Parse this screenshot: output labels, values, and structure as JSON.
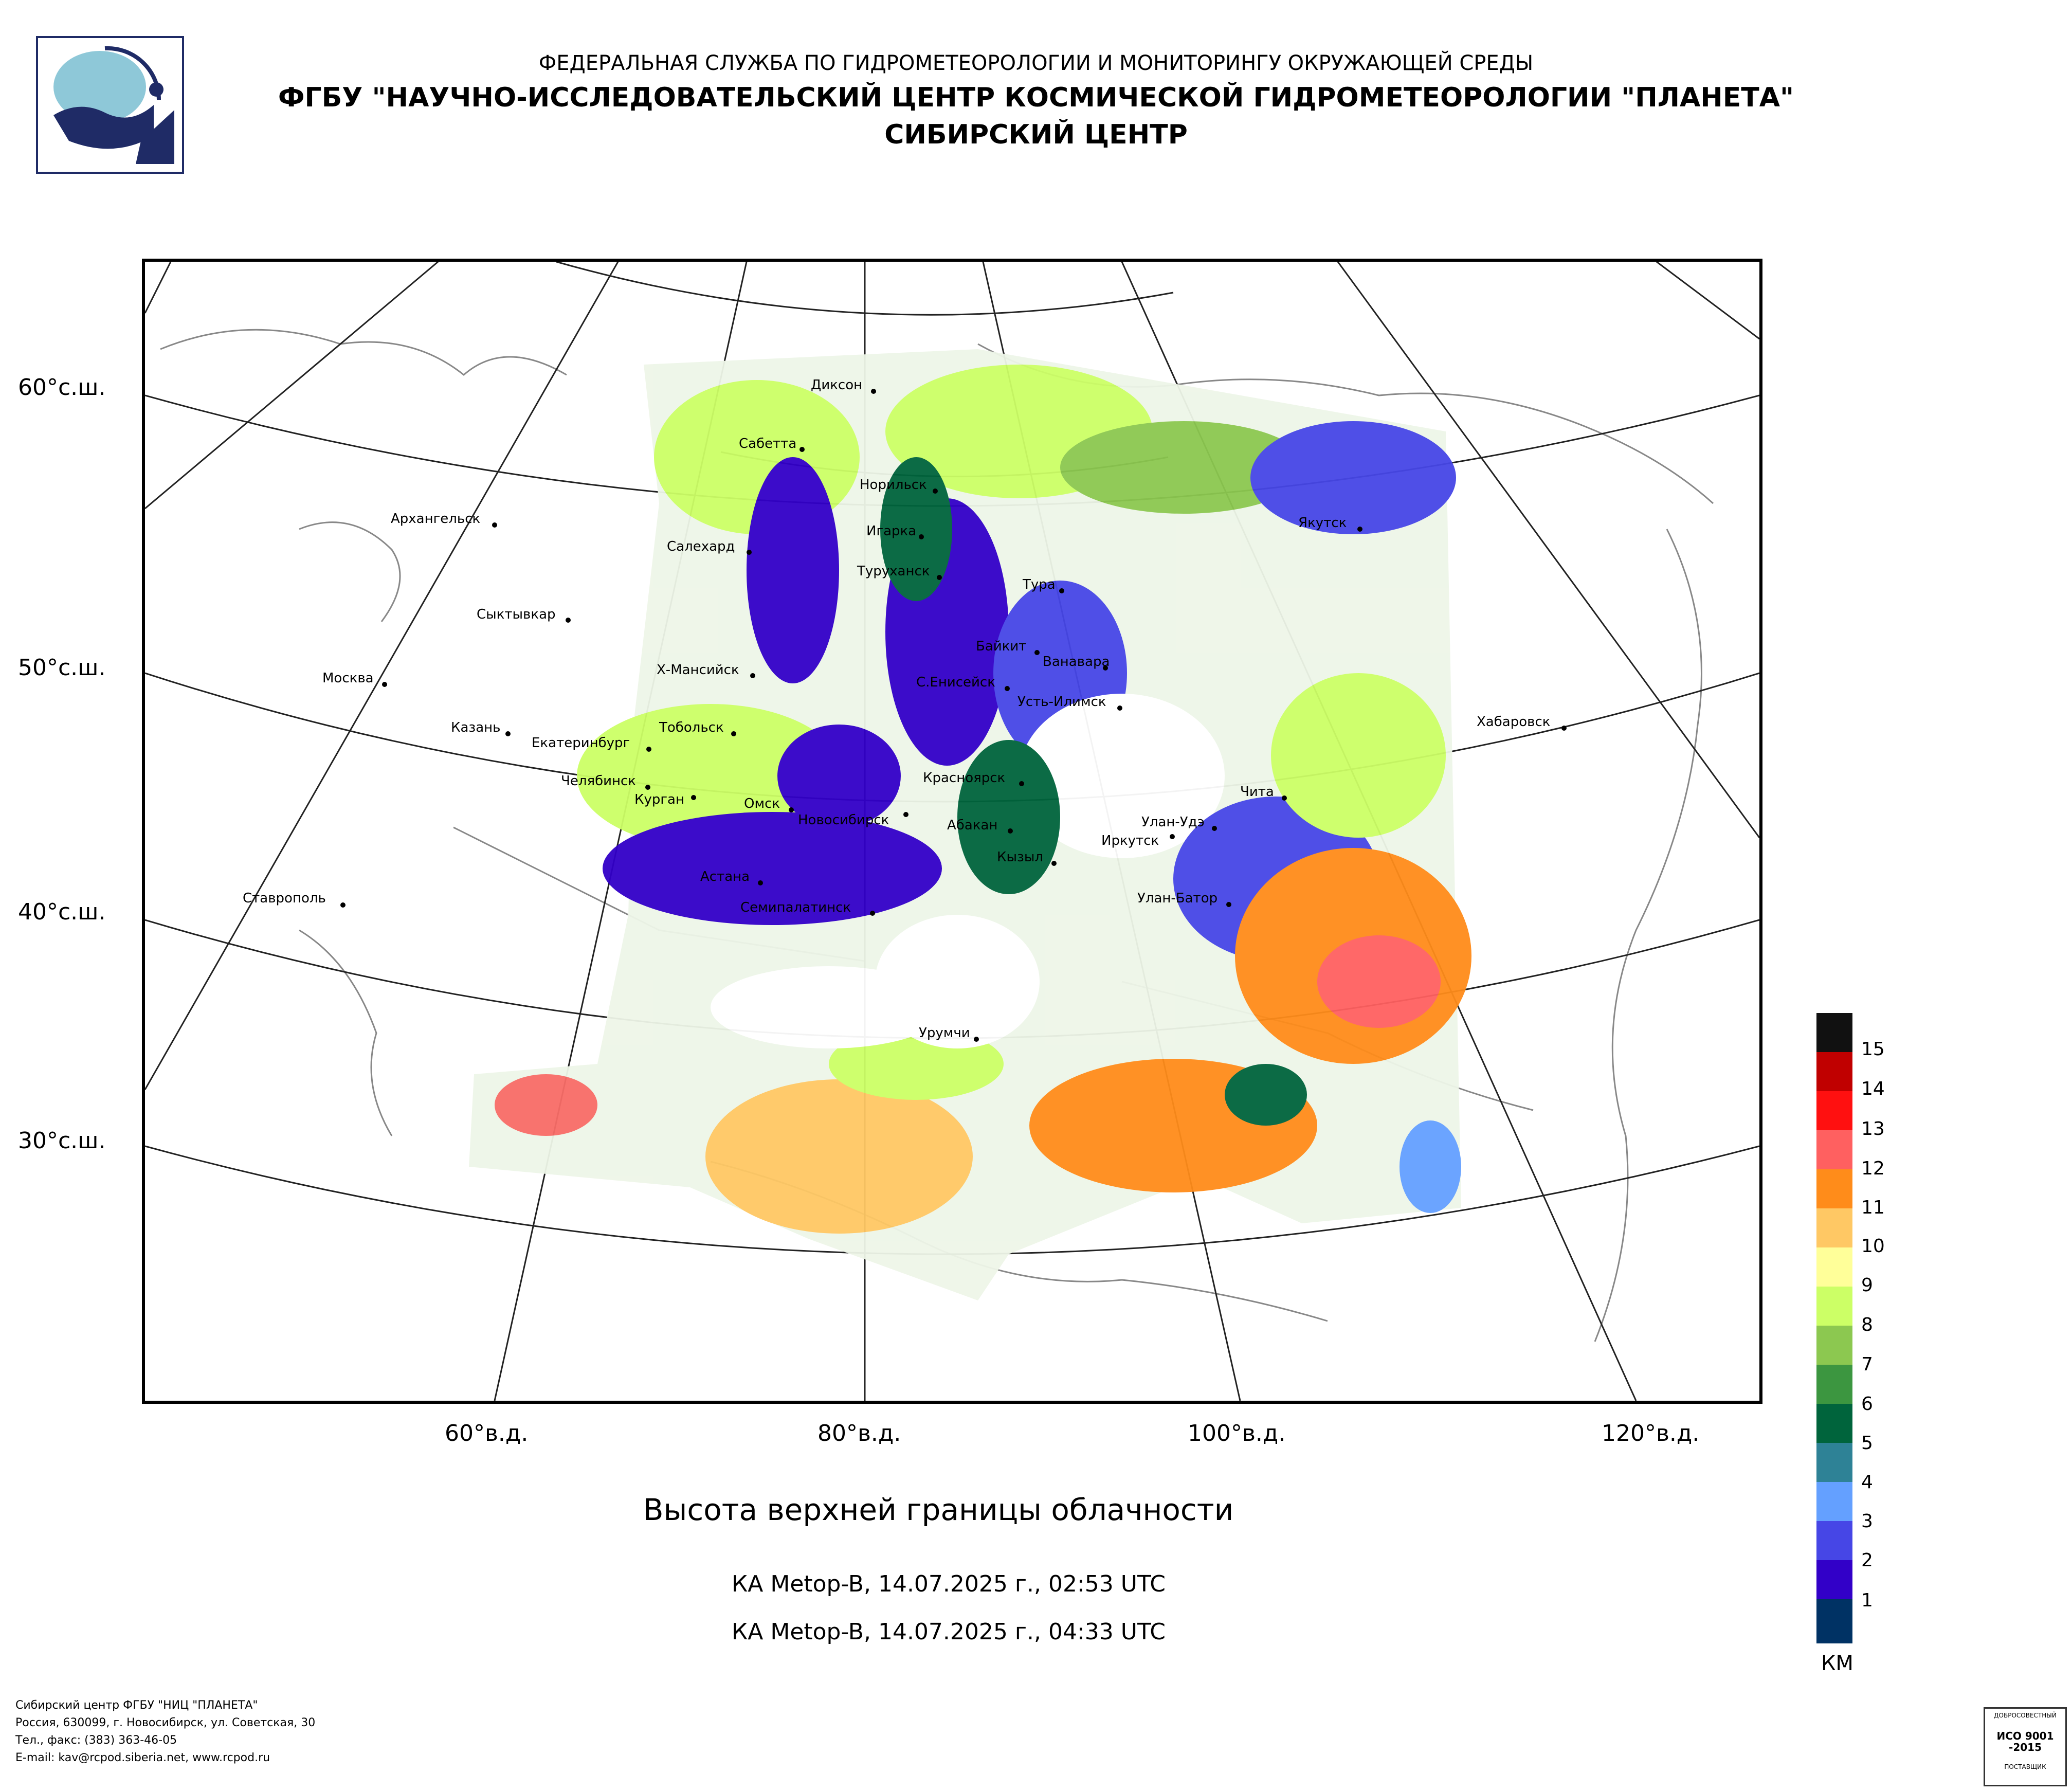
{
  "header": {
    "org": "ФЕДЕРАЛЬНАЯ СЛУЖБА ПО ГИДРОМЕТЕОРОЛОГИИ И МОНИТОРИНГУ ОКРУЖАЮЩЕЙ СРЕДЫ",
    "institute": "ФГБУ \"НАУЧНО-ИССЛЕДОВАТЕЛЬСКИЙ ЦЕНТР КОСМИЧЕСКОЙ ГИДРОМЕТЕОРОЛОГИИ \"ПЛАНЕТА\"",
    "center": "СИБИРСКИЙ ЦЕНТР"
  },
  "map": {
    "title": "Высота верхней границы облачности",
    "satellite_passes": [
      "КА Metop-B, 14.07.2025 г., 02:53 UTC",
      "КА Metop-B, 14.07.2025 г., 04:33 UTC"
    ],
    "lat_labels": [
      "60°с.ш.",
      "50°с.ш.",
      "40°с.ш.",
      "30°с.ш."
    ],
    "lon_labels": [
      "60°в.д.",
      "80°в.д.",
      "100°в.д.",
      "120°в.д."
    ],
    "cities": [
      "Диксон",
      "Сабетта",
      "Норильск",
      "Архангельск",
      "Игарка",
      "Салехард",
      "Туруханск",
      "Якутск",
      "Тура",
      "Сыктывкар",
      "Байкит",
      "Ванавара",
      "Х-Мансийск",
      "С.Енисейск",
      "Москва",
      "Усть-Илимск",
      "Хабаровск",
      "Казань",
      "Тобольск",
      "Екатеринбург",
      "Красноярск",
      "Челябинск",
      "Чита",
      "Курган",
      "Омск",
      "Новосибирск",
      "Улан-Удэ",
      "Абакан",
      "Иркутск",
      "Кызыл",
      "Астана",
      "Ставрополь",
      "Улан-Батор",
      "Семипалатинск",
      "Урумчи"
    ]
  },
  "legend": {
    "units": "КМ",
    "levels": [
      "15",
      "14",
      "13",
      "12",
      "11",
      "10",
      "9",
      "8",
      "7",
      "6",
      "5",
      "4",
      "3",
      "2",
      "1"
    ],
    "colors": [
      "#111111",
      "#c00000",
      "#ff1010",
      "#ff6060",
      "#ff8c1a",
      "#ffc864",
      "#ffff99",
      "#ccff66",
      "#8cc850",
      "#3c9640",
      "#00643c",
      "#2e8296",
      "#64a0ff",
      "#4646e6",
      "#3200c8",
      "#003264"
    ]
  },
  "footer": {
    "lines": [
      "Сибирский центр ФГБУ \"НИЦ \"ПЛАНЕТА\"",
      "Россия, 630099, г. Новосибирск, ул. Советская, 30",
      "Тел., факс: (383) 363-46-05",
      "E-mail: kav@rcpod.siberia.net, www.rcpod.ru"
    ]
  },
  "certificate": {
    "top": "ДОБРОСОВЕСТНЫЙ",
    "mark": "ИСО 9001 -2015",
    "bottom": "ПОСТАВЩИК"
  }
}
